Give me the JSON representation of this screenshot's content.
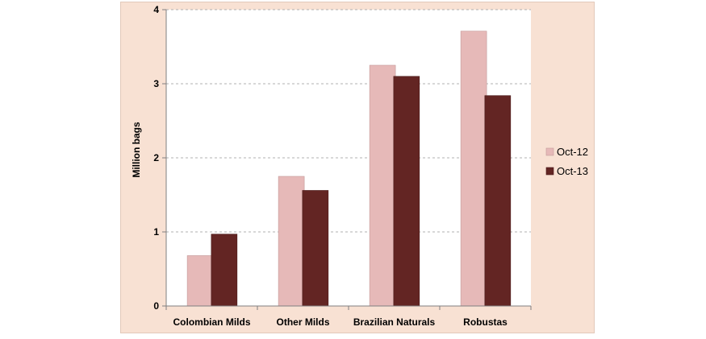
{
  "chart_data": {
    "type": "bar",
    "title": "",
    "xlabel": "",
    "ylabel": "Million bags",
    "categories": [
      "Colombian Milds",
      "Other Milds",
      "Brazilian Naturals",
      "Robustas"
    ],
    "series": [
      {
        "name": "Oct-12",
        "values": [
          0.68,
          1.75,
          3.25,
          3.71
        ],
        "color": "#e6b9b8"
      },
      {
        "name": "Oct-13",
        "values": [
          0.97,
          1.56,
          3.1,
          2.84
        ],
        "color": "#632523"
      }
    ],
    "ylim": [
      0,
      4
    ],
    "yticks": [
      "0",
      "1",
      "2",
      "3",
      "4"
    ],
    "grid": "horizontal dashed",
    "legend_position": "right",
    "plot_background": "#ffffff",
    "frame_background": "#f8e1d3"
  }
}
